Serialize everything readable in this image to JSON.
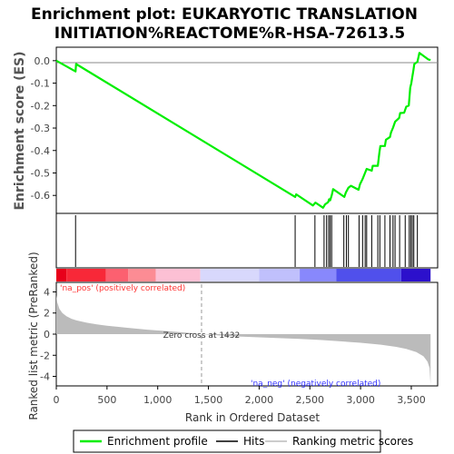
{
  "title_line1": "Enrichment plot: EUKARYOTIC TRANSLATION",
  "title_line2": "INITIATION%REACTOME%R-HSA-72613.5",
  "colors": {
    "profile": "#00ee00",
    "hits": "#000000",
    "metric_fill": "#bbbbbb",
    "pos_label": "#ff3333",
    "neg_label": "#3333ff",
    "zero_line": "#999999"
  },
  "chart_data": [
    {
      "type": "line",
      "name": "enrichment-profile",
      "ylabel": "Enrichment score (ES)",
      "xlim": [
        0,
        3760
      ],
      "ylim": [
        -0.68,
        0.06
      ],
      "yticks": [
        0.0,
        -0.1,
        -0.2,
        -0.3,
        -0.4,
        -0.5,
        -0.6
      ],
      "ytick_labels": [
        "0.0",
        "-0.1",
        "-0.2",
        "-0.3",
        "-0.4",
        "-0.5",
        "-0.6"
      ],
      "grid": false,
      "points": [
        [
          0,
          0.0
        ],
        [
          190,
          -0.048
        ],
        [
          195,
          -0.015
        ],
        [
          2355,
          -0.607
        ],
        [
          2365,
          -0.595
        ],
        [
          2530,
          -0.645
        ],
        [
          2555,
          -0.632
        ],
        [
          2630,
          -0.655
        ],
        [
          2650,
          -0.64
        ],
        [
          2680,
          -0.63
        ],
        [
          2690,
          -0.617
        ],
        [
          2700,
          -0.622
        ],
        [
          2715,
          -0.6
        ],
        [
          2730,
          -0.572
        ],
        [
          2840,
          -0.607
        ],
        [
          2855,
          -0.587
        ],
        [
          2880,
          -0.566
        ],
        [
          2905,
          -0.557
        ],
        [
          2980,
          -0.575
        ],
        [
          2995,
          -0.55
        ],
        [
          3020,
          -0.527
        ],
        [
          3035,
          -0.51
        ],
        [
          3060,
          -0.482
        ],
        [
          3110,
          -0.49
        ],
        [
          3120,
          -0.468
        ],
        [
          3170,
          -0.468
        ],
        [
          3185,
          -0.41
        ],
        [
          3195,
          -0.38
        ],
        [
          3240,
          -0.38
        ],
        [
          3250,
          -0.352
        ],
        [
          3290,
          -0.34
        ],
        [
          3300,
          -0.32
        ],
        [
          3320,
          -0.298
        ],
        [
          3340,
          -0.272
        ],
        [
          3380,
          -0.255
        ],
        [
          3390,
          -0.233
        ],
        [
          3430,
          -0.232
        ],
        [
          3450,
          -0.205
        ],
        [
          3475,
          -0.2
        ],
        [
          3482,
          -0.165
        ],
        [
          3490,
          -0.12
        ],
        [
          3500,
          -0.1
        ],
        [
          3510,
          -0.072
        ],
        [
          3520,
          -0.045
        ],
        [
          3530,
          -0.015
        ],
        [
          3560,
          -0.005
        ],
        [
          3580,
          0.035
        ],
        [
          3670,
          0.005
        ],
        [
          3690,
          0.003
        ]
      ]
    },
    {
      "type": "scatter",
      "name": "hits",
      "x": [
        190,
        2355,
        2550,
        2640,
        2665,
        2685,
        2700,
        2715,
        2835,
        2860,
        2880,
        2985,
        3020,
        3045,
        3060,
        3110,
        3170,
        3190,
        3240,
        3290,
        3320,
        3340,
        3385,
        3440,
        3480,
        3495,
        3510,
        3525,
        3560
      ]
    },
    {
      "type": "area",
      "name": "ranked-list-metric",
      "xlabel": "Rank in Ordered Dataset",
      "ylabel": "Ranked list metric (PreRanked)",
      "xlim": [
        0,
        3760
      ],
      "ylim": [
        -4.9,
        4.9
      ],
      "xticks": [
        0,
        500,
        1000,
        1500,
        2000,
        2500,
        3000,
        3500
      ],
      "xtick_labels": [
        "0",
        "500",
        "1,000",
        "1,500",
        "2,000",
        "2,500",
        "3,000",
        "3,500"
      ],
      "yticks": [
        4,
        2,
        0,
        -2,
        -4
      ],
      "ytick_labels": [
        "4",
        "2",
        "0",
        "-2",
        "-4"
      ],
      "zero_cross": 1432,
      "zero_cross_label": "Zero cross at 1432",
      "pos_label": "'na_pos' (positively correlated)",
      "neg_label": "'na_neg' (negatively correlated)",
      "points": [
        [
          0,
          3.7
        ],
        [
          10,
          3.0
        ],
        [
          30,
          2.4
        ],
        [
          60,
          2.0
        ],
        [
          100,
          1.7
        ],
        [
          150,
          1.45
        ],
        [
          200,
          1.3
        ],
        [
          300,
          1.08
        ],
        [
          400,
          0.92
        ],
        [
          500,
          0.8
        ],
        [
          700,
          0.6
        ],
        [
          900,
          0.42
        ],
        [
          1100,
          0.28
        ],
        [
          1300,
          0.13
        ],
        [
          1432,
          0.0
        ],
        [
          1600,
          -0.12
        ],
        [
          1800,
          -0.22
        ],
        [
          2000,
          -0.3
        ],
        [
          2200,
          -0.38
        ],
        [
          2400,
          -0.45
        ],
        [
          2600,
          -0.55
        ],
        [
          2800,
          -0.68
        ],
        [
          3000,
          -0.82
        ],
        [
          3200,
          -1.0
        ],
        [
          3350,
          -1.2
        ],
        [
          3450,
          -1.4
        ],
        [
          3550,
          -1.7
        ],
        [
          3620,
          -2.1
        ],
        [
          3660,
          -2.6
        ],
        [
          3680,
          -3.2
        ],
        [
          3690,
          -4.8
        ]
      ]
    }
  ],
  "color_bar": [
    {
      "x0": 0,
      "x1": 100,
      "color": "#e8001a"
    },
    {
      "x0": 100,
      "x1": 490,
      "color": "#f82838"
    },
    {
      "x0": 490,
      "x1": 710,
      "color": "#fc6070"
    },
    {
      "x0": 710,
      "x1": 980,
      "color": "#fc8c94"
    },
    {
      "x0": 980,
      "x1": 1420,
      "color": "#fcc0d4"
    },
    {
      "x0": 1420,
      "x1": 2000,
      "color": "#d8d8fc"
    },
    {
      "x0": 2000,
      "x1": 2400,
      "color": "#c0c0fc"
    },
    {
      "x0": 2400,
      "x1": 2760,
      "color": "#8888fc"
    },
    {
      "x0": 2760,
      "x1": 3400,
      "color": "#5050ec"
    },
    {
      "x0": 3400,
      "x1": 3690,
      "color": "#2c10cc"
    }
  ],
  "legend": [
    {
      "label": "Enrichment profile",
      "color": "#00ee00"
    },
    {
      "label": "Hits",
      "color": "#000000"
    },
    {
      "label": "Ranking metric scores",
      "color": "#cccccc"
    }
  ]
}
